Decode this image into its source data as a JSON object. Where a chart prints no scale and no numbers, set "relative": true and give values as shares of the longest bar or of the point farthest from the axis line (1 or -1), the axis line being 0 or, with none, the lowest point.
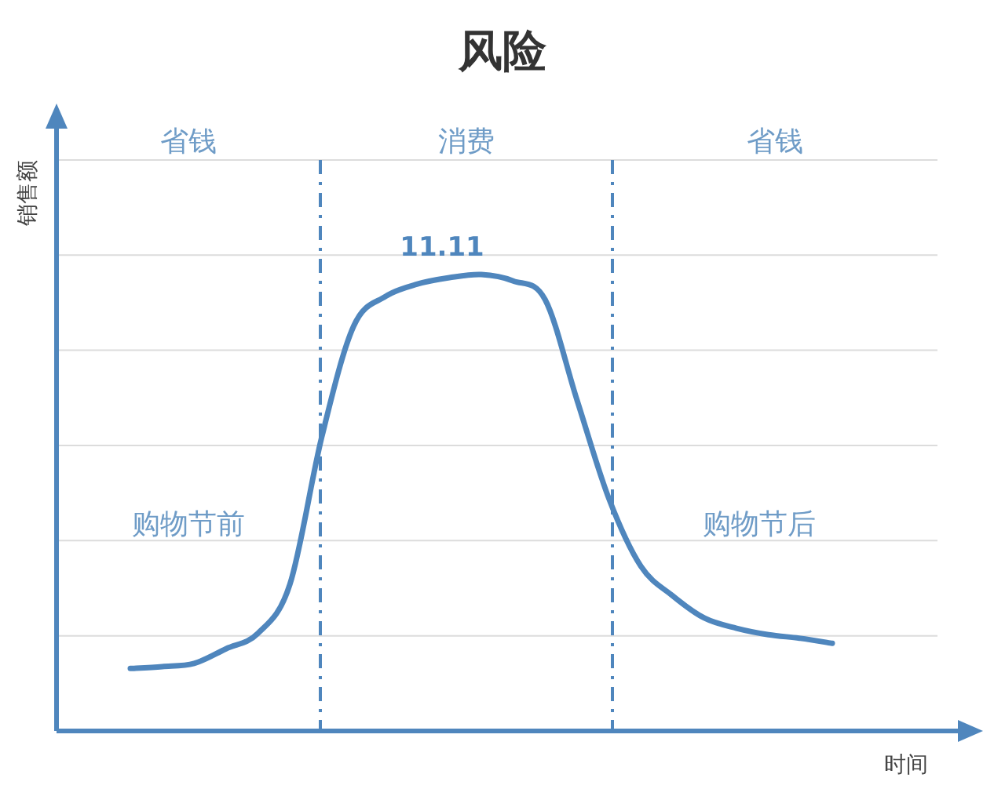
{
  "chart_data": {
    "type": "line",
    "title": "风险",
    "xlabel": "时间",
    "ylabel": "销售额",
    "relative": true,
    "grid": true,
    "color": "#4f86bd",
    "categories": [
      null,
      null,
      null,
      null,
      null,
      null,
      null,
      null,
      null,
      null,
      null,
      null,
      null,
      null,
      null,
      null,
      null,
      null,
      null,
      null,
      null,
      null,
      null
    ],
    "values": [
      0.137,
      0.141,
      0.148,
      0.18,
      0.214,
      0.321,
      0.644,
      0.887,
      0.952,
      0.979,
      0.993,
      1,
      0.986,
      0.945,
      0.725,
      0.509,
      0.361,
      0.296,
      0.247,
      0.225,
      0.211,
      0.203,
      0.192
    ],
    "annotations": [
      "省钱",
      "消费",
      "省钱",
      "11.11",
      "购物节前",
      "购物节后"
    ]
  }
}
